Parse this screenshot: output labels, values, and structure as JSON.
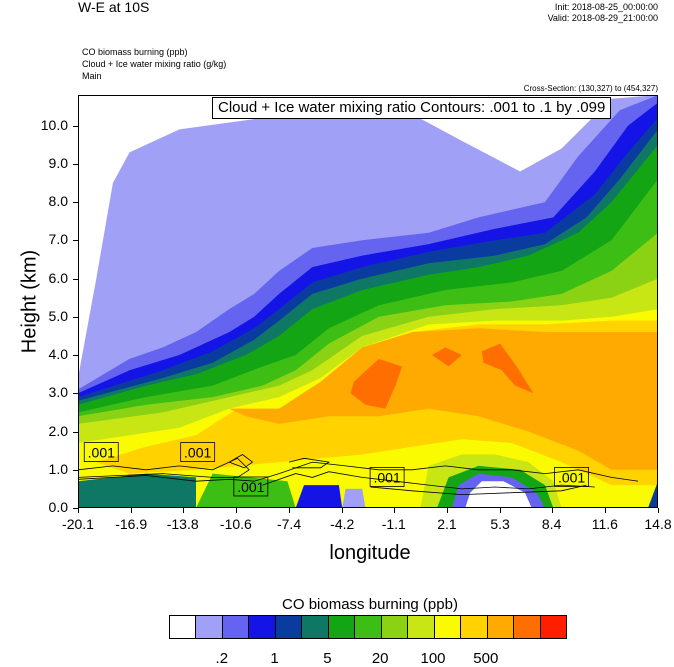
{
  "header": {
    "title": "W-E at 10S",
    "init": "Init: 2018-08-25_00:00:00",
    "valid": "Valid: 2018-08-29_21:00:00",
    "subtitle_lines": [
      "CO biomass burning   (ppb)",
      "Cloud + Ice water mixing ratio   (g/kg)",
      "Main"
    ],
    "cross_section": "Cross-Section: (130,327) to (454,327)"
  },
  "chart_data": {
    "type": "heatmap",
    "title": "W-E at 10S",
    "xlabel": "longitude",
    "ylabel": "Height (km)",
    "xlim": [
      -20.1,
      14.8
    ],
    "ylim": [
      0.0,
      10.8
    ],
    "x_ticks": [
      "-20.1",
      "-16.9",
      "-13.8",
      "-10.6",
      "-7.4",
      "-4.2",
      "-1.1",
      "2.1",
      "5.3",
      "8.4",
      "11.6",
      "14.8"
    ],
    "y_ticks": [
      "0.0",
      "1.0",
      "2.0",
      "3.0",
      "4.0",
      "5.0",
      "6.0",
      "7.0",
      "8.0",
      "9.0",
      "10.0"
    ],
    "contour_label": "Cloud + Ice water mixing ratio Contours: .001 to .1 by .099",
    "contour_line_labels": [
      ".001",
      ".001",
      ".001",
      ".001",
      ".001"
    ],
    "colorbar": {
      "title": "CO biomass burning  (ppb)",
      "colors": [
        "#ffffff",
        "#a0a0f6",
        "#6464f0",
        "#1414e6",
        "#0a3ca0",
        "#0f7864",
        "#14a514",
        "#3cbe14",
        "#8cd214",
        "#c8e614",
        "#fafa00",
        "#ffd200",
        "#ffaa00",
        "#ff6e00",
        "#ff1e00"
      ],
      "labels": [
        ".2",
        "1",
        "5",
        "20",
        "100",
        "500"
      ]
    }
  }
}
